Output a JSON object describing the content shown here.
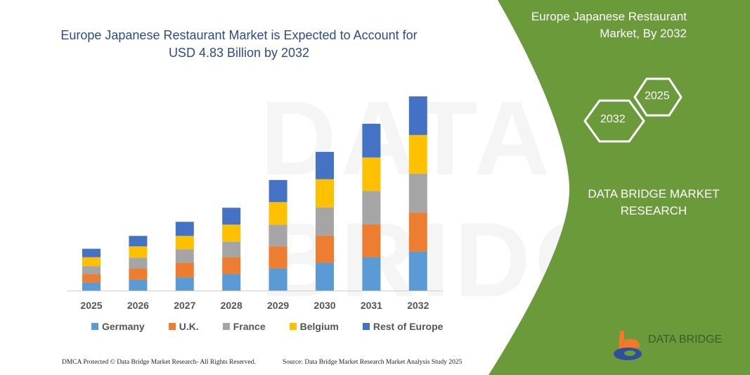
{
  "title": "Europe Japanese Restaurant Market is Expected to Account for USD 4.83 Billion by 2032",
  "title_line1": "Europe Japanese Restaurant Market is Expected to Account for",
  "title_line2": "USD 4.83 Billion by 2032",
  "panel": {
    "title_line1": "Europe Japanese Restaurant",
    "title_line2": "Market, By 2032",
    "hex1": "2032",
    "hex2": "2025",
    "brand_line1": "DATA BRIDGE MARKET",
    "brand_line2": "RESEARCH",
    "logo_text": "DATA BRIDGE",
    "color": "#6b9a3a"
  },
  "footer": {
    "left": "DMCA Protected © Data Bridge Market Research- All Rights Reserved.",
    "right": "Source: Data Bridge Market Research  Market Analysis Study 2025"
  },
  "watermark": "DATA BRIDGE",
  "chart_data": {
    "type": "bar",
    "stacked": true,
    "categories": [
      "2025",
      "2026",
      "2027",
      "2028",
      "2029",
      "2030",
      "2031",
      "2032"
    ],
    "series": [
      {
        "name": "Germany",
        "color": "#5b9bd5",
        "values": [
          0.2,
          0.27,
          0.33,
          0.41,
          0.55,
          0.69,
          0.83,
          0.97
        ]
      },
      {
        "name": "U.K.",
        "color": "#ed7d31",
        "values": [
          0.21,
          0.28,
          0.36,
          0.42,
          0.55,
          0.68,
          0.82,
          0.97
        ]
      },
      {
        "name": "France",
        "color": "#a5a5a5",
        "values": [
          0.2,
          0.27,
          0.34,
          0.39,
          0.54,
          0.7,
          0.83,
          0.97
        ]
      },
      {
        "name": "Belgium",
        "color": "#ffc000",
        "values": [
          0.22,
          0.28,
          0.33,
          0.42,
          0.56,
          0.7,
          0.83,
          0.96
        ]
      },
      {
        "name": "Rest of Europe",
        "color": "#4472c4",
        "values": [
          0.21,
          0.26,
          0.35,
          0.42,
          0.55,
          0.68,
          0.84,
          0.96
        ]
      }
    ],
    "ylim": [
      0,
      4.83
    ],
    "grid": false,
    "y_axis_visible": false,
    "legend_position": "bottom"
  }
}
